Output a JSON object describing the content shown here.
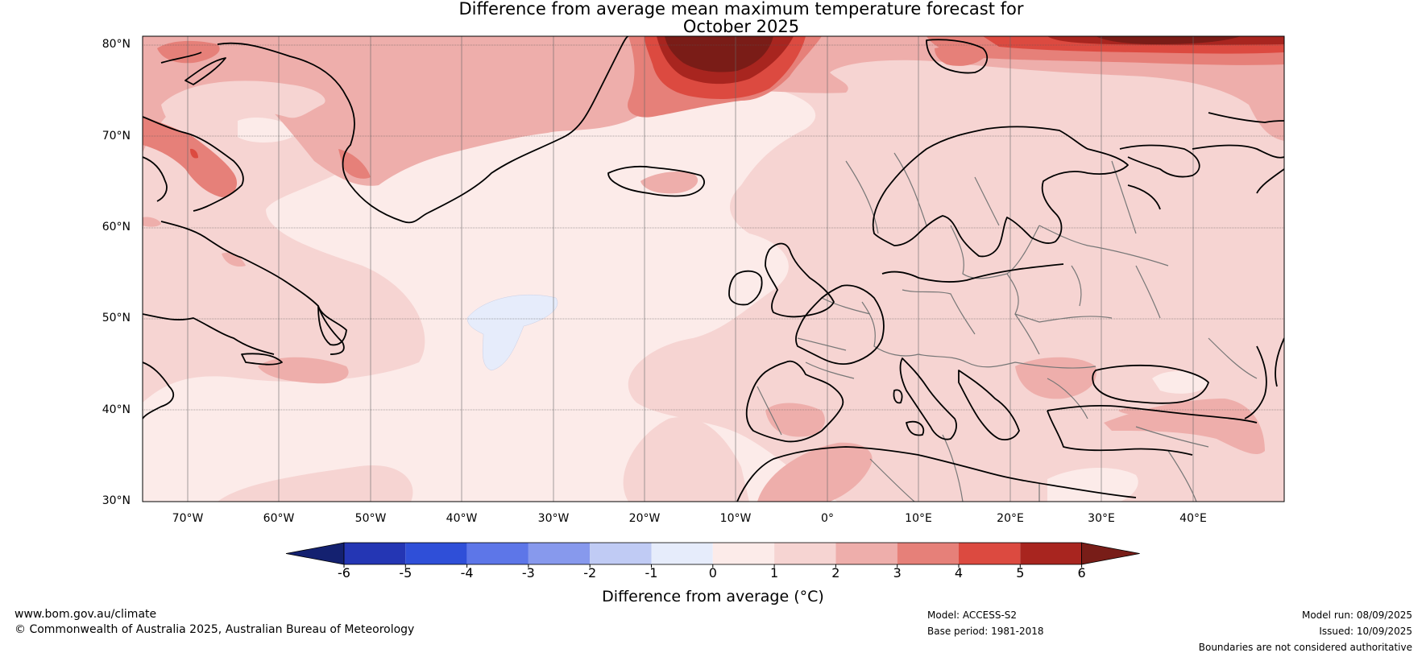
{
  "title": {
    "line1": "Difference from average mean maximum temperature forecast for",
    "line2": "October 2025"
  },
  "map": {
    "lat_labels": [
      "80°N",
      "70°N",
      "60°N",
      "50°N",
      "40°N",
      "30°N"
    ],
    "lon_labels": [
      "70°W",
      "60°W",
      "50°W",
      "40°W",
      "30°W",
      "20°W",
      "10°W",
      "0°",
      "10°E",
      "20°E",
      "30°E",
      "40°E"
    ],
    "extent": {
      "lon_min": -75,
      "lon_max": 50,
      "lat_min": 30,
      "lat_max": 81
    },
    "colors": {
      "ocean_base": "#fcebe9",
      "anomaly_1_2": "#f6d4d2",
      "anomaly_2_3": "#eeaeab",
      "anomaly_3_4": "#e68079",
      "anomaly_4_5": "#dc4a40",
      "anomaly_5_6": "#a8251f",
      "anomaly_gt6": "#7a1c17",
      "anomaly_m1_0": "#e6ecfb",
      "coastline": "#000000",
      "borders": "#777777"
    }
  },
  "colorbar": {
    "title": "Difference from average (°C)",
    "ticks": [
      "-6",
      "-5",
      "-4",
      "-3",
      "-2",
      "-1",
      "0",
      "1",
      "2",
      "3",
      "4",
      "5",
      "6"
    ],
    "colors": [
      "#142170",
      "#2436b4",
      "#2f4fd8",
      "#5d76e8",
      "#8799ed",
      "#c0cbf4",
      "#e6ecfb",
      "#fcebe9",
      "#f6d4d2",
      "#eeaeab",
      "#e68079",
      "#dc4a40",
      "#a8251f",
      "#781d18"
    ]
  },
  "footer": {
    "website": "www.bom.gov.au/climate",
    "copyright": "© Commonwealth of Australia 2025, Australian Bureau of Meteorology",
    "model": "Model: ACCESS-S2",
    "base_period": "Base period: 1981-2018",
    "model_run": "Model run: 08/09/2025",
    "issued": "Issued: 10/09/2025",
    "disclaimer": "Boundaries are not considered authoritative"
  }
}
